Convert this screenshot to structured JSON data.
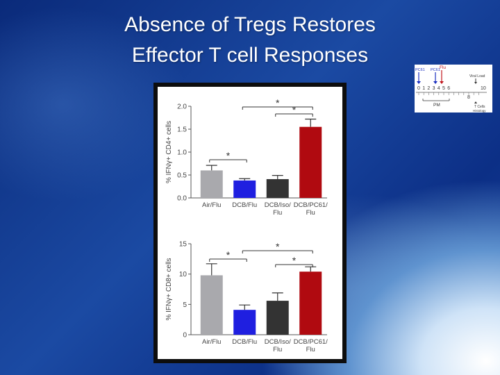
{
  "slide": {
    "title_line1": "Absence of Tregs Restores",
    "title_line2": "Effector T cell Responses"
  },
  "schematic": {
    "pc61_label_1": "PC61",
    "pc61_label_2": "PC61",
    "flu_label": "Flu",
    "viral_load_label": "Viral Load",
    "day_numbers": [
      "0",
      "1",
      "2",
      "3",
      "4",
      "5",
      "6"
    ],
    "day_10": "10",
    "day_8": "8",
    "pm_label": "PM",
    "t_cells_label": "T Cells",
    "histology_label": "Histology",
    "colors": {
      "pc61": "#1a2fbf",
      "flu": "#c0141b",
      "text": "#333333"
    }
  },
  "chart_data": [
    {
      "type": "bar",
      "ylabel": "% IFNγ+ CD4+ cells",
      "ylim": [
        0,
        2.0
      ],
      "yticks": [
        "0.0",
        "0.5",
        "1.0",
        "1.5",
        "2.0"
      ],
      "categories": [
        "Air/Flu",
        "DCB/Flu",
        "DCB/Iso/ Flu",
        "DCB/PC61/ Flu"
      ],
      "category_lines": [
        [
          "Air/Flu"
        ],
        [
          "DCB/Flu"
        ],
        [
          "DCB/Iso/",
          "Flu"
        ],
        [
          "DCB/PC61/",
          "Flu"
        ]
      ],
      "values": [
        0.6,
        0.38,
        0.41,
        1.55
      ],
      "errors": [
        0.11,
        0.04,
        0.08,
        0.17
      ],
      "colors": [
        "#a9a9ad",
        "#1f1fe0",
        "#333333",
        "#b00a10"
      ],
      "significance": [
        {
          "from": 0,
          "to": 1,
          "label": "*"
        },
        {
          "from": 1,
          "to": 3,
          "label": "*"
        },
        {
          "from": 2,
          "to": 3,
          "label": "*"
        }
      ]
    },
    {
      "type": "bar",
      "ylabel": "% IFNγ+ CD8+ cells",
      "ylim": [
        0,
        15
      ],
      "yticks": [
        "0",
        "5",
        "10",
        "15"
      ],
      "categories": [
        "Air/Flu",
        "DCB/Flu",
        "DCB/Iso/ Flu",
        "DCB/PC61/ Flu"
      ],
      "category_lines": [
        [
          "Air/Flu"
        ],
        [
          "DCB/Flu"
        ],
        [
          "DCB/Iso/",
          "Flu"
        ],
        [
          "DCB/PC61/",
          "Flu"
        ]
      ],
      "values": [
        9.8,
        4.1,
        5.6,
        10.4
      ],
      "errors": [
        1.9,
        0.8,
        1.3,
        0.8
      ],
      "colors": [
        "#a9a9ad",
        "#1f1fe0",
        "#333333",
        "#b00a10"
      ],
      "significance": [
        {
          "from": 0,
          "to": 1,
          "label": "*"
        },
        {
          "from": 1,
          "to": 3,
          "label": "*"
        },
        {
          "from": 2,
          "to": 3,
          "label": "*"
        }
      ]
    }
  ]
}
